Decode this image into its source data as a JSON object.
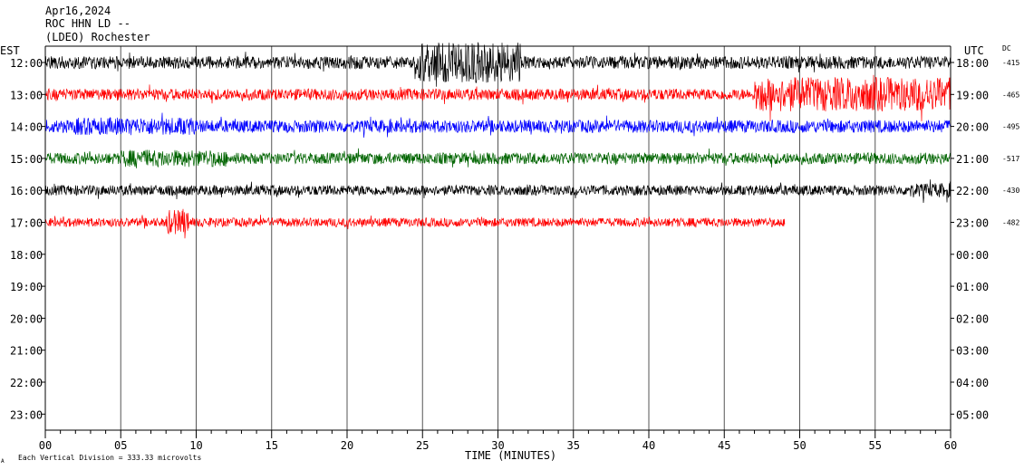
{
  "header": {
    "date": "Apr16,2024",
    "station": "ROC HHN LD --",
    "network": "(LDEO) Rochester"
  },
  "labels": {
    "left_tz": "EST",
    "right_tz": "UTC",
    "dc_label": "DC",
    "x_axis_title": "TIME (MINUTES)",
    "footnote": "Each Vertical Division =  333.33 microvolts",
    "footnote_mark": "A"
  },
  "chart_data": {
    "type": "line",
    "title": "",
    "xlabel": "TIME (MINUTES)",
    "ylabel": "",
    "xlim": [
      0,
      60
    ],
    "x_ticks": [
      "00",
      "05",
      "10",
      "15",
      "20",
      "25",
      "30",
      "35",
      "40",
      "45",
      "50",
      "55",
      "60"
    ],
    "x_minor_step_minutes": 1,
    "grid": true,
    "left_hour_labels": [
      "12:00",
      "13:00",
      "14:00",
      "15:00",
      "16:00",
      "17:00",
      "18:00",
      "19:00",
      "20:00",
      "21:00",
      "22:00",
      "23:00"
    ],
    "right_hour_labels": [
      "18:00",
      "19:00",
      "20:00",
      "21:00",
      "22:00",
      "23:00",
      "00:00",
      "01:00",
      "02:00",
      "03:00",
      "04:00",
      "05:00"
    ],
    "series": [
      {
        "hour_index": 0,
        "color": "#000000",
        "dc": "-415",
        "end_minute": 60,
        "amplitude": 1.0,
        "event": {
          "start": 24.5,
          "end": 31.5,
          "gain": 3.2
        }
      },
      {
        "hour_index": 1,
        "color": "#ff0000",
        "dc": "-465",
        "end_minute": 60,
        "amplitude": 0.9,
        "event": {
          "start": 47,
          "end": 60,
          "gain": 3.0
        }
      },
      {
        "hour_index": 2,
        "color": "#0000ff",
        "dc": "-495",
        "end_minute": 60,
        "amplitude": 1.0,
        "event": {
          "start": 2,
          "end": 10,
          "gain": 1.4
        }
      },
      {
        "hour_index": 3,
        "color": "#006400",
        "dc": "-517",
        "end_minute": 60,
        "amplitude": 0.9,
        "event": {
          "start": 5,
          "end": 12,
          "gain": 1.5
        }
      },
      {
        "hour_index": 4,
        "color": "#000000",
        "dc": "-430",
        "end_minute": 60,
        "amplitude": 0.8,
        "event": {
          "start": 57,
          "end": 60,
          "gain": 1.4
        }
      },
      {
        "hour_index": 5,
        "color": "#ff0000",
        "dc": "-482",
        "end_minute": 49,
        "amplitude": 0.7,
        "event": {
          "start": 8,
          "end": 9.5,
          "gain": 2.8
        }
      }
    ]
  }
}
